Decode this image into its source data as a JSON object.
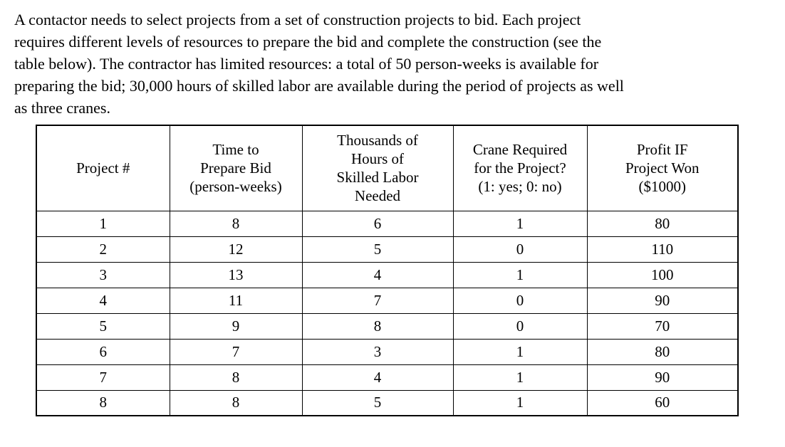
{
  "problem_statement": {
    "text": "A contactor needs to select projects from a set of construction projects to bid. Each project\nrequires different levels of resources to prepare the bid and complete the construction (see the\ntable below). The contractor has limited resources: a total of 50 person-weeks is available for\npreparing the bid; 30,000 hours of skilled labor are available during the period of projects as well\nas three cranes.",
    "bid_person_weeks_available": 50,
    "skilled_labor_hours_available": 30000,
    "cranes_available": 3
  },
  "table": {
    "headers": [
      "Project #",
      "Time to\nPrepare Bid\n(person-weeks)",
      "Thousands of\nHours of\nSkilled Labor\nNeeded",
      "Crane Required\nfor the Project?\n(1: yes; 0: no)",
      "Profit IF\nProject Won\n($1000)"
    ],
    "rows": [
      [
        "1",
        "8",
        "6",
        "1",
        "80"
      ],
      [
        "2",
        "12",
        "5",
        "0",
        "110"
      ],
      [
        "3",
        "13",
        "4",
        "1",
        "100"
      ],
      [
        "4",
        "11",
        "7",
        "0",
        "90"
      ],
      [
        "5",
        "9",
        "8",
        "0",
        "70"
      ],
      [
        "6",
        "7",
        "3",
        "1",
        "80"
      ],
      [
        "7",
        "8",
        "4",
        "1",
        "90"
      ],
      [
        "8",
        "8",
        "5",
        "1",
        "60"
      ]
    ]
  },
  "colors": {
    "background": "#ffffff",
    "text": "#000000",
    "table_border": "#000000"
  }
}
